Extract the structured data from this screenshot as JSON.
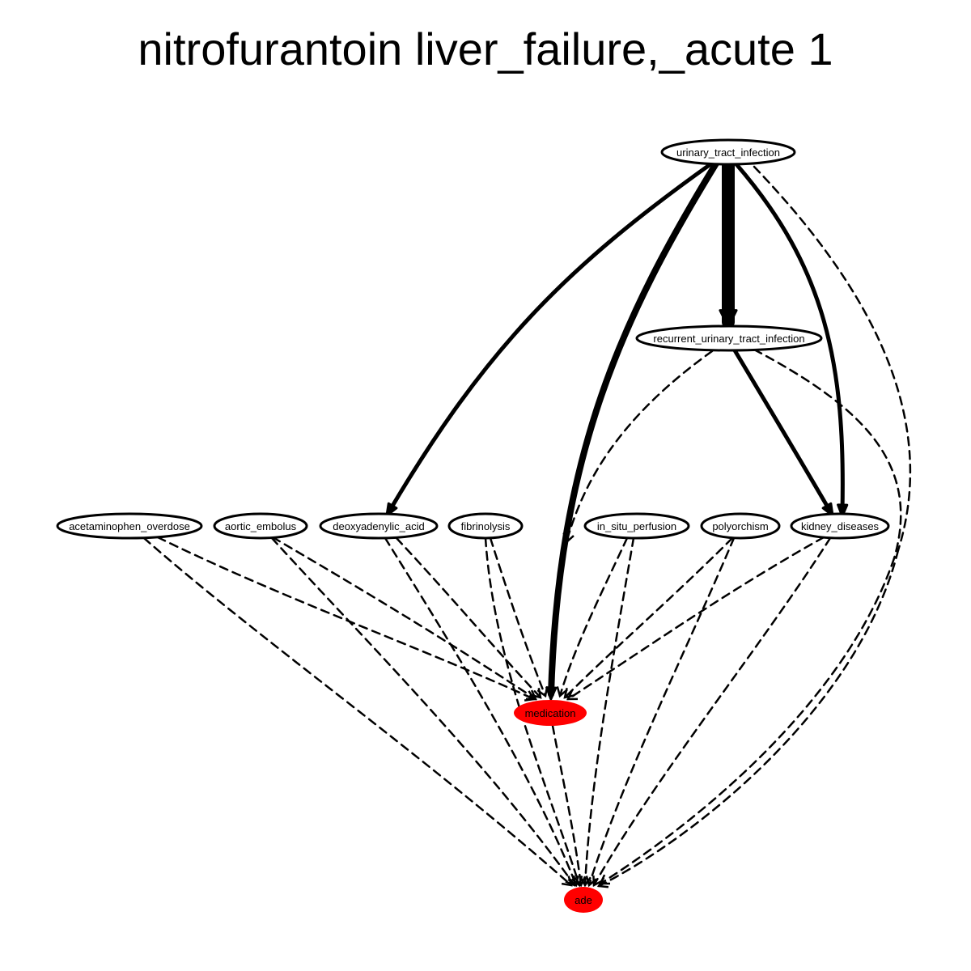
{
  "title": "nitrofurantoin liver_failure,_acute 1",
  "colors": {
    "edge": "#000000",
    "node_fill_default": "#ffffff",
    "node_fill_highlight": "#ff0000",
    "node_stroke": "#000000"
  },
  "nodes": [
    {
      "id": "uti",
      "label": "urinary_tract_infection",
      "highlight": false
    },
    {
      "id": "ruti",
      "label": "recurrent_urinary_tract_infection",
      "highlight": false
    },
    {
      "id": "aceta",
      "label": "acetaminophen_overdose",
      "highlight": false
    },
    {
      "id": "aortic",
      "label": "aortic_embolus",
      "highlight": false
    },
    {
      "id": "deoxy",
      "label": "deoxyadenylic_acid",
      "highlight": false
    },
    {
      "id": "fibrino",
      "label": "fibrinolysis",
      "highlight": false
    },
    {
      "id": "insitu",
      "label": "in_situ_perfusion",
      "highlight": false
    },
    {
      "id": "polyor",
      "label": "polyorchism",
      "highlight": false
    },
    {
      "id": "kidney",
      "label": "kidney_diseases",
      "highlight": false
    },
    {
      "id": "med",
      "label": "medication",
      "highlight": true
    },
    {
      "id": "ade",
      "label": "ade",
      "highlight": true
    }
  ],
  "edges": [
    {
      "from": "uti",
      "to": "ruti",
      "style": "solid",
      "weight": 5
    },
    {
      "from": "uti",
      "to": "med",
      "style": "solid",
      "weight": 3
    },
    {
      "from": "uti",
      "to": "deoxy",
      "style": "solid",
      "weight": 2
    },
    {
      "from": "uti",
      "to": "kidney",
      "style": "solid",
      "weight": 2
    },
    {
      "from": "uti",
      "to": "ade",
      "style": "dashed",
      "weight": 1
    },
    {
      "from": "ruti",
      "to": "kidney",
      "style": "solid",
      "weight": 2
    },
    {
      "from": "ruti",
      "to": "med",
      "style": "dashed",
      "weight": 1
    },
    {
      "from": "ruti",
      "to": "ade",
      "style": "dashed",
      "weight": 1
    },
    {
      "from": "aceta",
      "to": "med",
      "style": "dashed",
      "weight": 1
    },
    {
      "from": "aceta",
      "to": "ade",
      "style": "dashed",
      "weight": 1
    },
    {
      "from": "aortic",
      "to": "med",
      "style": "dashed",
      "weight": 1
    },
    {
      "from": "aortic",
      "to": "ade",
      "style": "dashed",
      "weight": 1
    },
    {
      "from": "deoxy",
      "to": "med",
      "style": "dashed",
      "weight": 1
    },
    {
      "from": "deoxy",
      "to": "ade",
      "style": "dashed",
      "weight": 1
    },
    {
      "from": "fibrino",
      "to": "med",
      "style": "dashed",
      "weight": 1
    },
    {
      "from": "fibrino",
      "to": "ade",
      "style": "dashed",
      "weight": 1
    },
    {
      "from": "insitu",
      "to": "med",
      "style": "dashed",
      "weight": 1
    },
    {
      "from": "insitu",
      "to": "ade",
      "style": "dashed",
      "weight": 1
    },
    {
      "from": "polyor",
      "to": "med",
      "style": "dashed",
      "weight": 1
    },
    {
      "from": "polyor",
      "to": "ade",
      "style": "dashed",
      "weight": 1
    },
    {
      "from": "kidney",
      "to": "med",
      "style": "dashed",
      "weight": 1
    },
    {
      "from": "kidney",
      "to": "ade",
      "style": "dashed",
      "weight": 1
    },
    {
      "from": "med",
      "to": "ade",
      "style": "dashed",
      "weight": 1
    }
  ]
}
